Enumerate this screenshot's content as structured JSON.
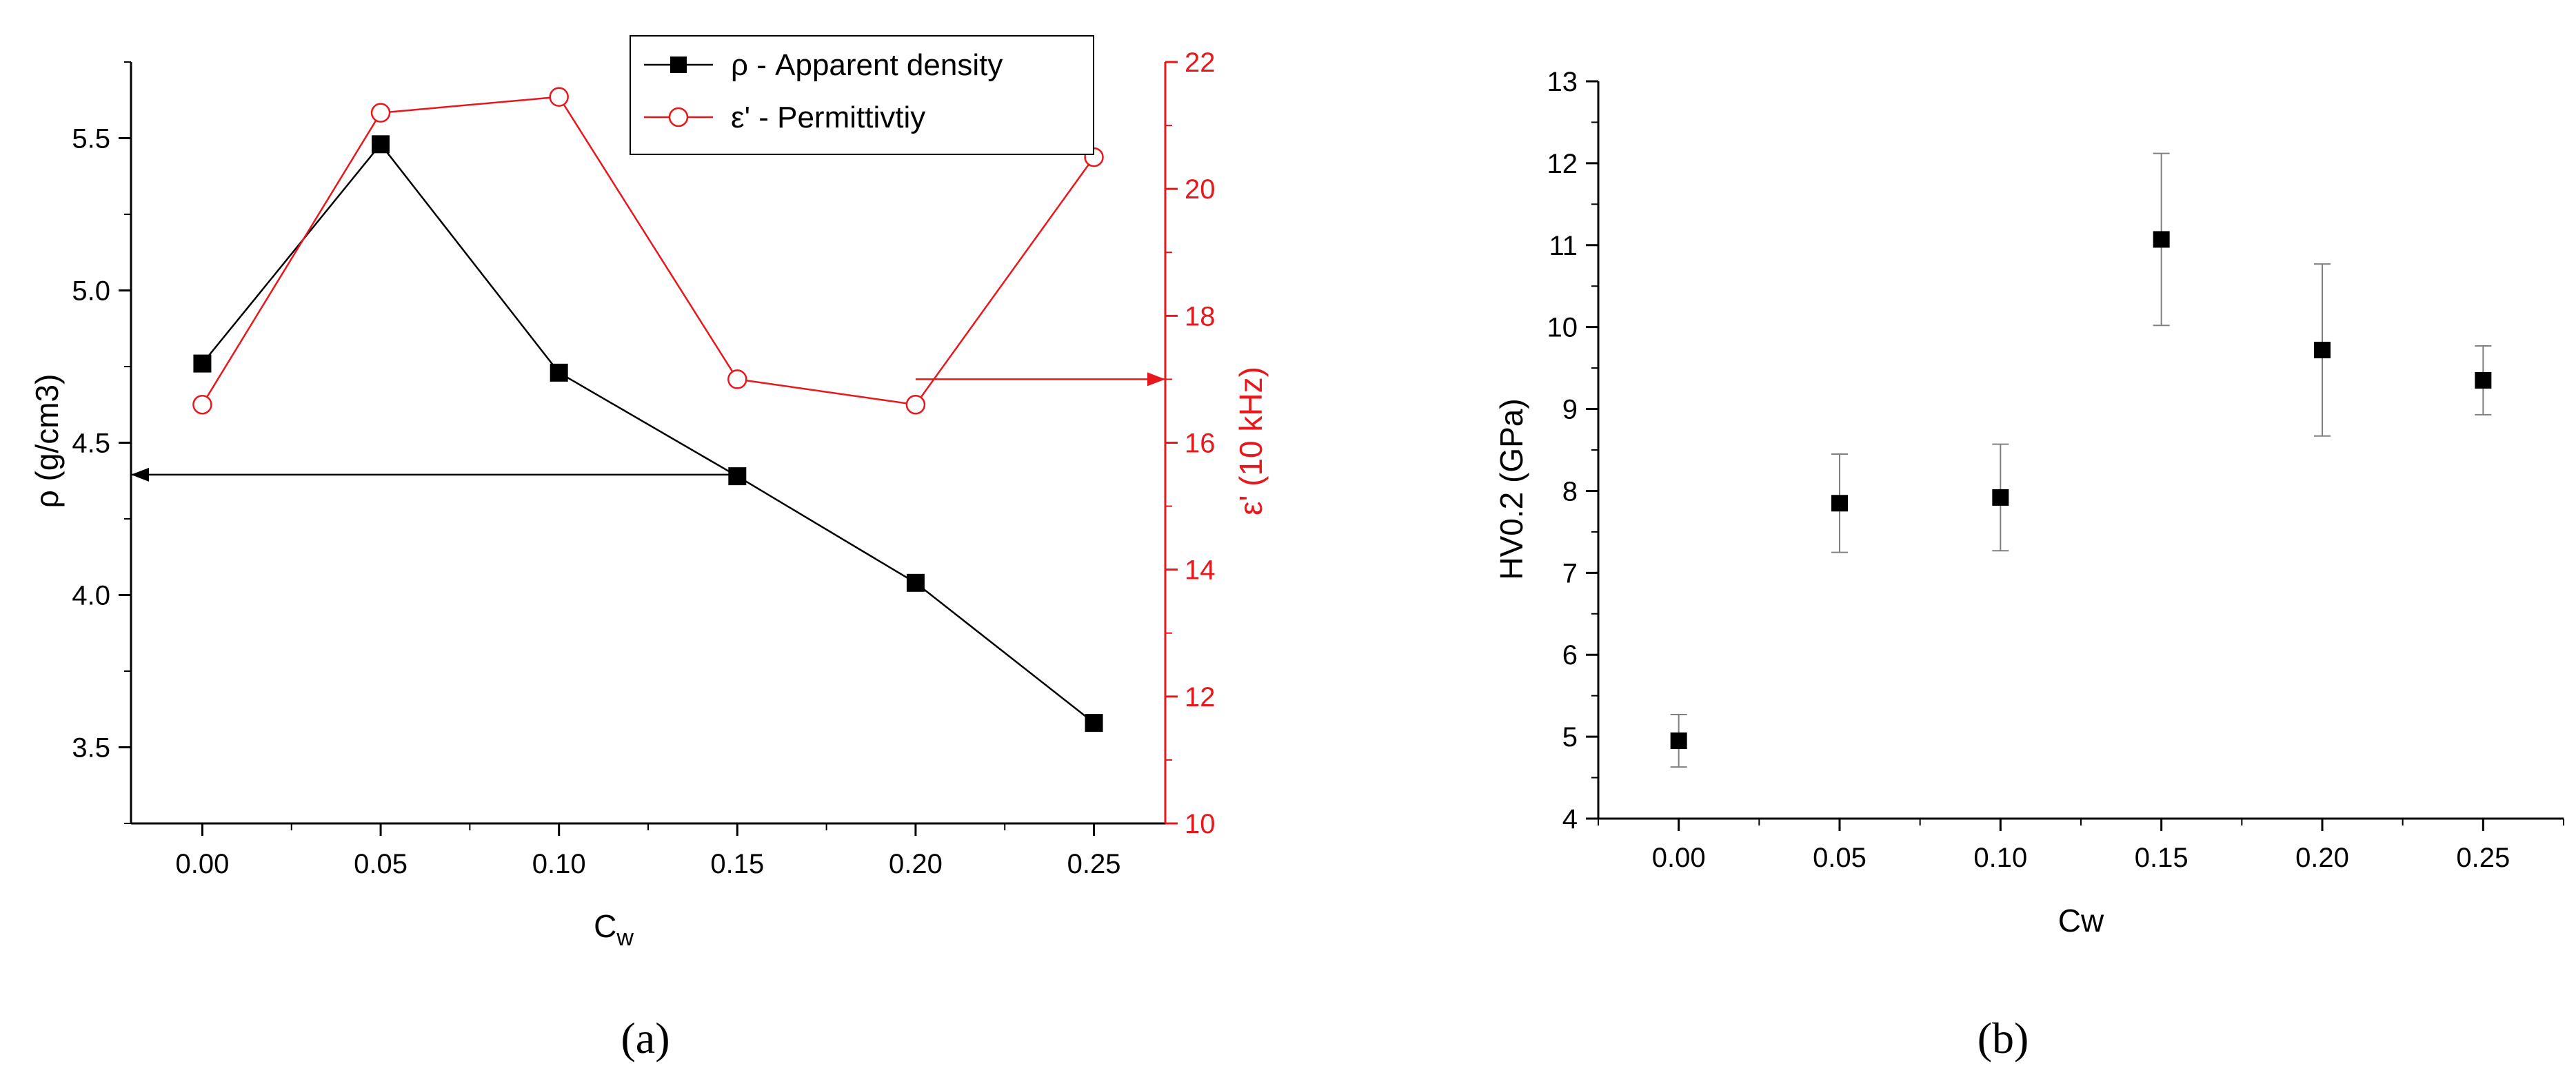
{
  "colors": {
    "black": "#000000",
    "red": "#e8171b",
    "errorbar": "#808080"
  },
  "panel_labels": {
    "a": "(a)",
    "b": "(b)"
  },
  "chart_data": [
    {
      "type": "line",
      "panel": "a",
      "xlabel": "C",
      "xlabel_sub": "w",
      "ylabel": "ρ (g/cm3)",
      "y2label": "ε' (10 kHz)",
      "xlim": [
        -0.02,
        0.27
      ],
      "ylim": [
        3.25,
        5.75
      ],
      "y2lim": [
        10,
        22
      ],
      "xticks": [
        "0.00",
        "0.05",
        "0.10",
        "0.15",
        "0.20",
        "0.25"
      ],
      "yticks": [
        "3.5",
        "4.0",
        "4.5",
        "5.0",
        "5.5"
      ],
      "y2ticks": [
        "10",
        "12",
        "14",
        "16",
        "18",
        "20",
        "22"
      ],
      "legend_position": "top-right",
      "series": [
        {
          "name": "ρ - Apparent density",
          "axis": "left",
          "color": "#000000",
          "marker": "filled-square",
          "x": [
            0.0,
            0.05,
            0.1,
            0.15,
            0.2,
            0.25
          ],
          "y": [
            4.76,
            5.48,
            4.73,
            4.39,
            4.04,
            3.58
          ]
        },
        {
          "name": "ε' - Permittivtiy",
          "axis": "right",
          "color": "#e8171b",
          "marker": "open-circle",
          "x": [
            0.0,
            0.05,
            0.1,
            0.15,
            0.2,
            0.25
          ],
          "y": [
            16.6,
            21.2,
            21.45,
            17.0,
            16.6,
            20.5
          ]
        }
      ],
      "annotations": [
        {
          "type": "arrow",
          "color": "#000000",
          "axis": "left",
          "from": [
            0.15,
            4.395
          ],
          "to": [
            -0.02,
            4.395
          ]
        },
        {
          "type": "arrow",
          "color": "#e8171b",
          "axis": "right",
          "from": [
            0.2,
            17.0
          ],
          "to": [
            0.27,
            17.0
          ]
        }
      ]
    },
    {
      "type": "scatter",
      "panel": "b",
      "xlabel": "Cw",
      "ylabel": "HV0.2 (GPa)",
      "xlim": [
        -0.025,
        0.275
      ],
      "ylim": [
        4,
        13
      ],
      "xticks": [
        "0.00",
        "0.05",
        "0.10",
        "0.15",
        "0.20",
        "0.25"
      ],
      "yticks": [
        "4",
        "5",
        "6",
        "7",
        "8",
        "9",
        "10",
        "11",
        "12",
        "13"
      ],
      "series": [
        {
          "marker": "filled-square",
          "color": "#000000",
          "x": [
            0.0,
            0.05,
            0.1,
            0.15,
            0.2,
            0.25
          ],
          "y": [
            4.95,
            7.85,
            7.92,
            11.07,
            9.72,
            9.35
          ],
          "yerr": [
            0.32,
            0.6,
            0.65,
            1.05,
            1.05,
            0.42
          ]
        }
      ]
    }
  ]
}
